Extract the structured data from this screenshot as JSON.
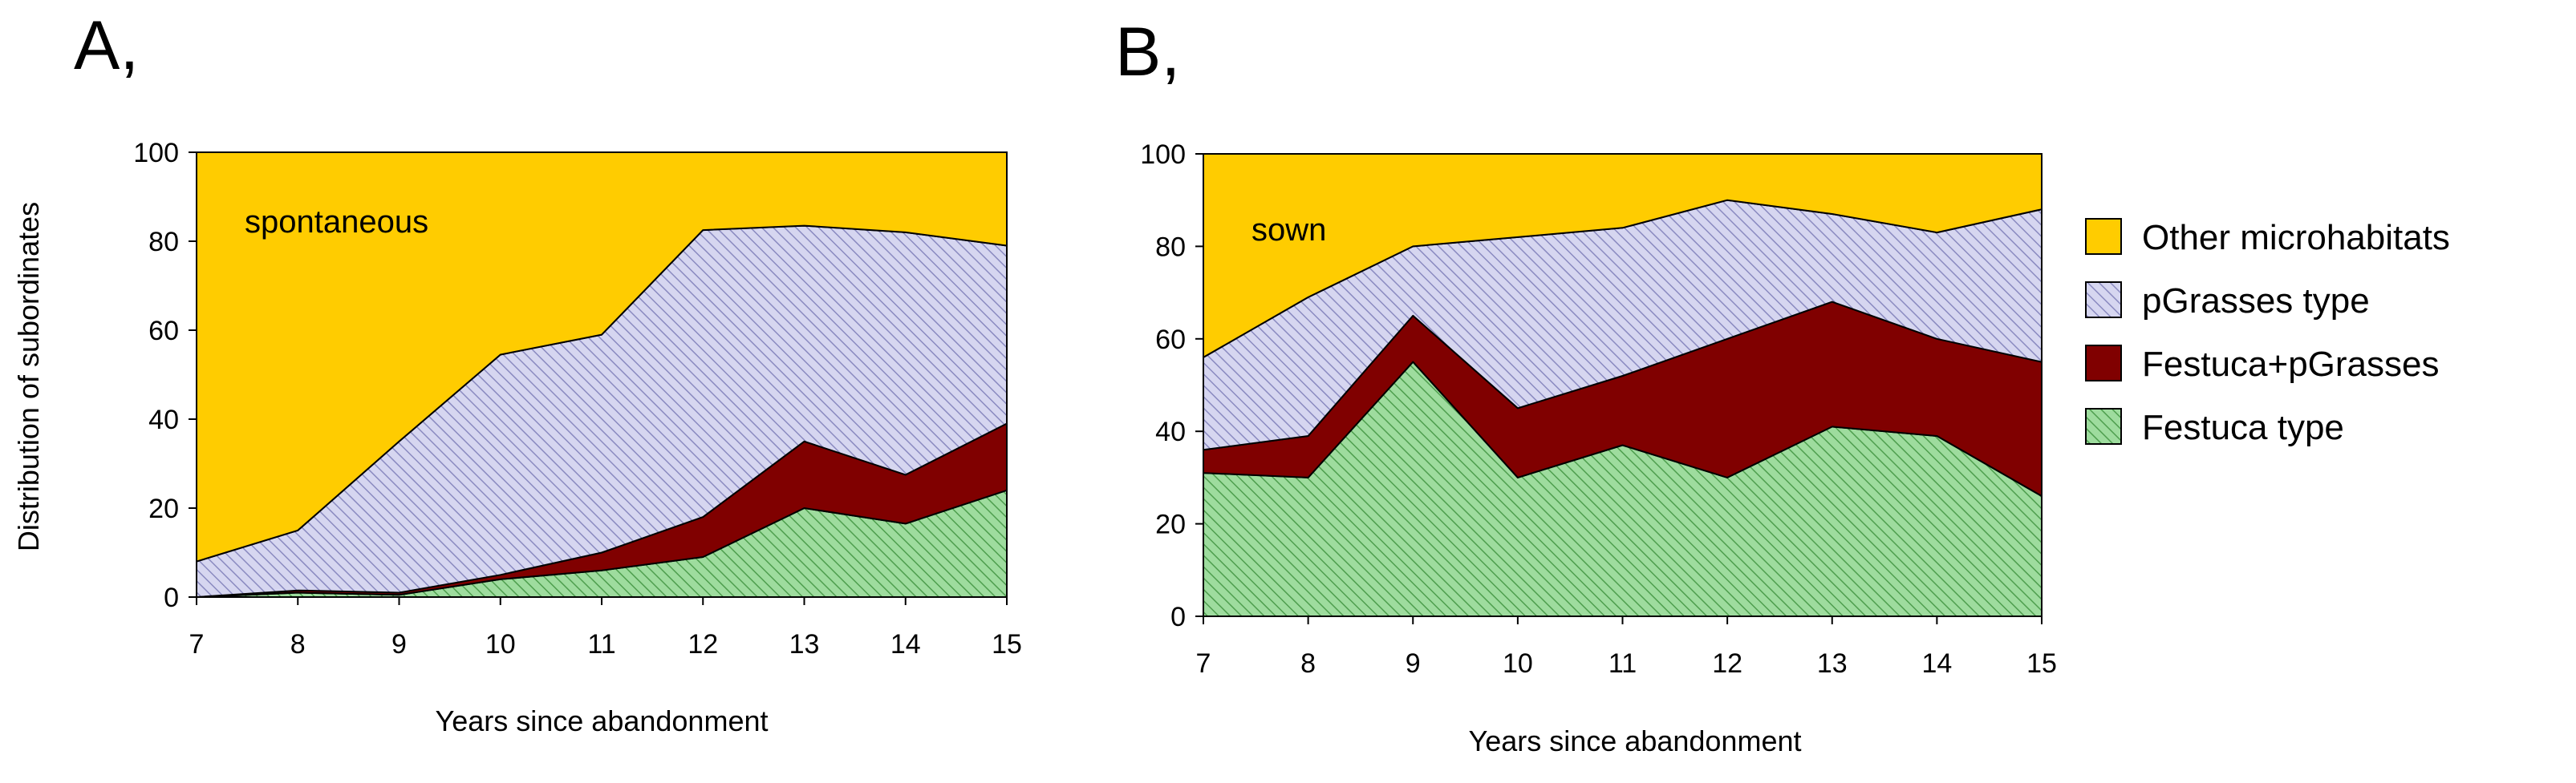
{
  "colors": {
    "other": "#FFCC00",
    "pgrasses": "#CCCCEE",
    "festuca_pgrasses": "#800000",
    "festuca": "#8FD38F"
  },
  "legend": [
    "Other microhabitats",
    "pGrasses type",
    "Festuca+pGrasses",
    "Festuca type"
  ],
  "chart_data": [
    {
      "type": "area",
      "panel_label": "A,",
      "inner_label": "spontaneous",
      "xlabel": "Years since abandonment",
      "ylabel": "Distribution of subordinates",
      "x": [
        7,
        8,
        9,
        10,
        11,
        12,
        13,
        14,
        15
      ],
      "ylim": [
        0,
        100
      ],
      "yticks": [
        0,
        20,
        40,
        60,
        80,
        100
      ],
      "stacked": true,
      "series": [
        {
          "name": "Festuca type",
          "values": [
            0,
            1,
            0.5,
            4,
            6,
            9,
            20,
            16.5,
            24
          ]
        },
        {
          "name": "Festuca+pGrasses",
          "values": [
            0,
            0.5,
            0.5,
            1,
            4,
            9,
            15,
            11,
            15
          ]
        },
        {
          "name": "pGrasses type",
          "values": [
            8,
            13.5,
            34,
            49.5,
            49,
            64.5,
            48.5,
            54.5,
            40
          ]
        },
        {
          "name": "Other microhabitats",
          "values": [
            92,
            85,
            65,
            45.5,
            41,
            17.5,
            16.5,
            18,
            21
          ]
        }
      ]
    },
    {
      "type": "area",
      "panel_label": "B,",
      "inner_label": "sown",
      "xlabel": "Years since abandonment",
      "ylabel": "",
      "x": [
        7,
        8,
        9,
        10,
        11,
        12,
        13,
        14,
        15
      ],
      "ylim": [
        0,
        100
      ],
      "yticks": [
        0,
        20,
        40,
        60,
        80,
        100
      ],
      "stacked": true,
      "series": [
        {
          "name": "Festuca type",
          "values": [
            31,
            30,
            55,
            30,
            37,
            30,
            41,
            39,
            26
          ]
        },
        {
          "name": "Festuca+pGrasses",
          "values": [
            5,
            9,
            10,
            15,
            15,
            30,
            27,
            21,
            29
          ]
        },
        {
          "name": "pGrasses type",
          "values": [
            20,
            30,
            15,
            37,
            32,
            30,
            19,
            23,
            33
          ]
        },
        {
          "name": "Other microhabitats",
          "values": [
            44,
            31,
            20,
            18,
            16,
            10,
            13,
            17,
            12
          ]
        }
      ]
    }
  ]
}
